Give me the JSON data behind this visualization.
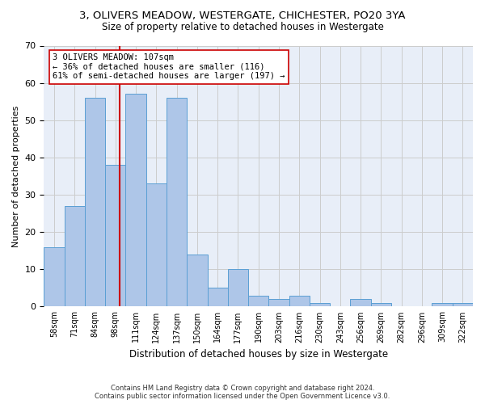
{
  "title": "3, OLIVERS MEADOW, WESTERGATE, CHICHESTER, PO20 3YA",
  "subtitle": "Size of property relative to detached houses in Westergate",
  "xlabel": "Distribution of detached houses by size in Westergate",
  "ylabel": "Number of detached properties",
  "bar_labels": [
    "58sqm",
    "71sqm",
    "84sqm",
    "98sqm",
    "111sqm",
    "124sqm",
    "137sqm",
    "150sqm",
    "164sqm",
    "177sqm",
    "190sqm",
    "203sqm",
    "216sqm",
    "230sqm",
    "243sqm",
    "256sqm",
    "269sqm",
    "282sqm",
    "296sqm",
    "309sqm",
    "322sqm"
  ],
  "bar_values": [
    16,
    27,
    56,
    38,
    57,
    33,
    56,
    14,
    5,
    10,
    3,
    2,
    3,
    1,
    0,
    2,
    1,
    0,
    0,
    1,
    1
  ],
  "bar_color": "#aec6e8",
  "bar_edge_color": "#5a9fd4",
  "property_line_color": "#cc0000",
  "annotation_text": "3 OLIVERS MEADOW: 107sqm\n← 36% of detached houses are smaller (116)\n61% of semi-detached houses are larger (197) →",
  "annotation_box_color": "#ffffff",
  "annotation_box_edge": "#cc0000",
  "ylim": [
    0,
    70
  ],
  "yticks": [
    0,
    10,
    20,
    30,
    40,
    50,
    60,
    70
  ],
  "grid_color": "#cccccc",
  "bg_color": "#e8eef8",
  "footer_line1": "Contains HM Land Registry data © Crown copyright and database right 2024.",
  "footer_line2": "Contains public sector information licensed under the Open Government Licence v3.0."
}
